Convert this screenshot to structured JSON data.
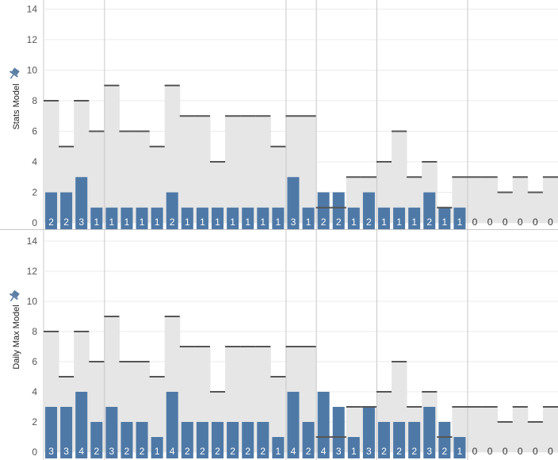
{
  "colors": {
    "bar": "#4e79a7",
    "band": "#e6e6e6",
    "reference_line": "#555555",
    "grid": "#ebebeb",
    "divider": "#c8c8c8",
    "pin": "#5b7fa5"
  },
  "icons": {
    "pin": "pin-icon"
  },
  "chart_data": [
    {
      "type": "bar",
      "ylabel": "Stats Model",
      "ylim": [
        0,
        15
      ],
      "yticks": [
        "0",
        "2",
        "4",
        "6",
        "8",
        "10",
        "12",
        "14"
      ],
      "grid": true,
      "values": [
        2,
        2,
        3,
        1,
        1,
        1,
        1,
        1,
        2,
        1,
        1,
        1,
        1,
        1,
        1,
        1,
        3,
        1,
        2,
        2,
        1,
        2,
        1,
        1,
        1,
        2,
        1,
        1,
        0,
        0,
        0,
        0,
        0,
        0
      ],
      "reference": [
        8,
        5,
        8,
        6,
        9,
        6,
        6,
        5,
        9,
        7,
        7,
        4,
        7,
        7,
        7,
        5,
        7,
        7,
        1,
        1,
        3,
        3,
        4,
        6,
        3,
        4,
        1,
        3,
        3,
        3,
        2,
        3,
        2,
        3
      ]
    },
    {
      "type": "bar",
      "ylabel": "Daily Max Model",
      "ylim": [
        0,
        15
      ],
      "yticks": [
        "0",
        "2",
        "4",
        "6",
        "8",
        "10",
        "12",
        "14"
      ],
      "grid": true,
      "values": [
        3,
        3,
        4,
        2,
        3,
        2,
        2,
        1,
        4,
        2,
        2,
        2,
        2,
        2,
        2,
        1,
        4,
        2,
        4,
        3,
        1,
        3,
        2,
        2,
        2,
        3,
        2,
        1,
        0,
        0,
        0,
        0,
        0,
        0
      ],
      "reference": [
        8,
        5,
        8,
        6,
        9,
        6,
        6,
        5,
        9,
        7,
        7,
        4,
        7,
        7,
        7,
        5,
        7,
        7,
        1,
        1,
        3,
        3,
        4,
        6,
        3,
        4,
        1,
        3,
        3,
        3,
        2,
        3,
        2,
        3
      ]
    }
  ]
}
